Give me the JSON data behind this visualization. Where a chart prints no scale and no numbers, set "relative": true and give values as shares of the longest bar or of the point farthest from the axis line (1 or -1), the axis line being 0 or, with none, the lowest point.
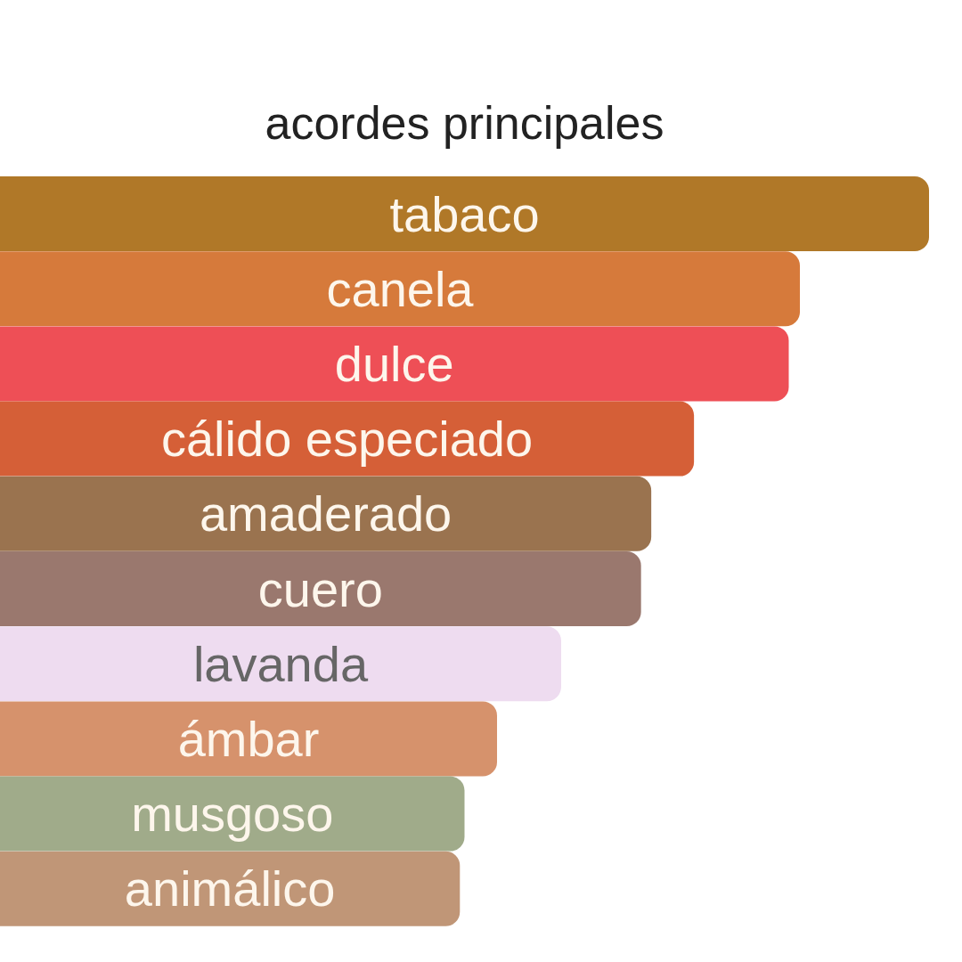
{
  "chart_data": {
    "type": "bar",
    "orientation": "horizontal",
    "relative": true,
    "title": "acordes principales",
    "categories": [
      "tabaco",
      "canela",
      "dulce",
      "cálido especiado",
      "amaderado",
      "cuero",
      "lavanda",
      "ámbar",
      "musgoso",
      "animálico"
    ],
    "values": [
      1,
      0.861,
      0.849,
      0.747,
      0.701,
      0.69,
      0.604,
      0.535,
      0.5,
      0.495
    ],
    "colors": [
      "#b07828",
      "#d67a3b",
      "#ee4f56",
      "#d55f37",
      "#9a734f",
      "#9a786e",
      "#eedcf0",
      "#d6926c",
      "#a0ab8a",
      "#c09677"
    ]
  }
}
